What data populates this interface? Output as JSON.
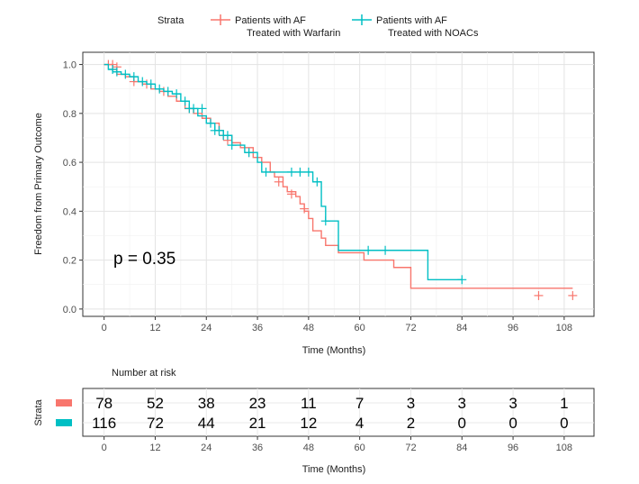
{
  "chart_data": [
    {
      "type": "line",
      "subtype": "kaplan-meier",
      "title": "",
      "xlabel": "Time (Months)",
      "ylabel": "Freedom from Primary Outcome",
      "xlim": [
        -5,
        115
      ],
      "ylim": [
        -0.03,
        1.05
      ],
      "xticks": [
        0,
        12,
        24,
        36,
        48,
        60,
        72,
        84,
        96,
        108
      ],
      "yticks": [
        0.0,
        0.2,
        0.4,
        0.6,
        0.8,
        1.0
      ],
      "ytick_labels": [
        "0.0",
        "0.2",
        "0.4",
        "0.6",
        "0.8",
        "1.0"
      ],
      "grid": true,
      "legend_title": "Strata",
      "legend_position": "top",
      "annotation": "p = 0.35",
      "series": [
        {
          "name": "Patients with AF Treated with Warfarin",
          "name_lines": [
            "Patients with AF",
            "Treated with Warfarin"
          ],
          "color": "#f8766d",
          "steps": [
            [
              0,
              1.0
            ],
            [
              2,
              0.98
            ],
            [
              3,
              0.96
            ],
            [
              5,
              0.95
            ],
            [
              7,
              0.93
            ],
            [
              9,
              0.92
            ],
            [
              11,
              0.9
            ],
            [
              13,
              0.89
            ],
            [
              15,
              0.87
            ],
            [
              17,
              0.85
            ],
            [
              19,
              0.82
            ],
            [
              21,
              0.8
            ],
            [
              23,
              0.78
            ],
            [
              25,
              0.76
            ],
            [
              27,
              0.73
            ],
            [
              28,
              0.71
            ],
            [
              30,
              0.68
            ],
            [
              32,
              0.66
            ],
            [
              35,
              0.62
            ],
            [
              37,
              0.6
            ],
            [
              39,
              0.56
            ],
            [
              40,
              0.54
            ],
            [
              42,
              0.5
            ],
            [
              43,
              0.48
            ],
            [
              45,
              0.46
            ],
            [
              46,
              0.43
            ],
            [
              47,
              0.4
            ],
            [
              48,
              0.37
            ],
            [
              49,
              0.32
            ],
            [
              51,
              0.29
            ],
            [
              52,
              0.26
            ],
            [
              55,
              0.23
            ],
            [
              61,
              0.2
            ],
            [
              68,
              0.17
            ],
            [
              72,
              0.085
            ],
            [
              110,
              0.085
            ]
          ],
          "censors": [
            [
              1,
              1.0
            ],
            [
              2,
              1.0
            ],
            [
              3,
              0.99
            ],
            [
              7,
              0.93
            ],
            [
              10,
              0.92
            ],
            [
              14,
              0.89
            ],
            [
              20,
              0.82
            ],
            [
              27,
              0.73
            ],
            [
              28,
              0.71
            ],
            [
              29,
              0.69
            ],
            [
              34,
              0.64
            ],
            [
              41,
              0.52
            ],
            [
              44,
              0.47
            ],
            [
              47,
              0.41
            ],
            [
              102,
              0.055
            ],
            [
              110,
              0.055
            ]
          ]
        },
        {
          "name": "Patients with AF Treated with NOACs",
          "name_lines": [
            "Patients with AF",
            "Treated with NOACs"
          ],
          "color": "#00bfc4",
          "steps": [
            [
              0,
              1.0
            ],
            [
              1,
              0.98
            ],
            [
              2,
              0.97
            ],
            [
              4,
              0.96
            ],
            [
              6,
              0.95
            ],
            [
              8,
              0.93
            ],
            [
              10,
              0.92
            ],
            [
              12,
              0.9
            ],
            [
              14,
              0.89
            ],
            [
              16,
              0.88
            ],
            [
              18,
              0.85
            ],
            [
              20,
              0.82
            ],
            [
              22,
              0.79
            ],
            [
              24,
              0.76
            ],
            [
              26,
              0.73
            ],
            [
              28,
              0.71
            ],
            [
              30,
              0.67
            ],
            [
              33,
              0.64
            ],
            [
              36,
              0.6
            ],
            [
              37,
              0.56
            ],
            [
              49,
              0.52
            ],
            [
              51,
              0.42
            ],
            [
              52,
              0.36
            ],
            [
              55,
              0.24
            ],
            [
              76,
              0.12
            ],
            [
              84,
              0.12
            ]
          ],
          "censors": [
            [
              2,
              0.98
            ],
            [
              3,
              0.97
            ],
            [
              5,
              0.96
            ],
            [
              7,
              0.95
            ],
            [
              9,
              0.93
            ],
            [
              11,
              0.92
            ],
            [
              13,
              0.9
            ],
            [
              15,
              0.89
            ],
            [
              17,
              0.88
            ],
            [
              19,
              0.85
            ],
            [
              20,
              0.82
            ],
            [
              21,
              0.82
            ],
            [
              23,
              0.82
            ],
            [
              25,
              0.76
            ],
            [
              26,
              0.73
            ],
            [
              27,
              0.73
            ],
            [
              28,
              0.71
            ],
            [
              29,
              0.71
            ],
            [
              30,
              0.67
            ],
            [
              34,
              0.64
            ],
            [
              38,
              0.56
            ],
            [
              44,
              0.56
            ],
            [
              46,
              0.56
            ],
            [
              48,
              0.56
            ],
            [
              50,
              0.52
            ],
            [
              52,
              0.36
            ],
            [
              62,
              0.24
            ],
            [
              66,
              0.24
            ],
            [
              84,
              0.12
            ]
          ]
        }
      ]
    },
    {
      "type": "table",
      "title": "Number at risk",
      "ylabel": "Strata",
      "xlabel": "Time (Months)",
      "x": [
        0,
        12,
        24,
        36,
        48,
        60,
        72,
        84,
        96,
        108
      ],
      "rows": [
        {
          "color": "#f8766d",
          "values": [
            78,
            52,
            38,
            23,
            11,
            7,
            3,
            3,
            3,
            1
          ]
        },
        {
          "color": "#00bfc4",
          "values": [
            116,
            72,
            44,
            21,
            12,
            4,
            2,
            0,
            0,
            0
          ]
        }
      ]
    }
  ]
}
